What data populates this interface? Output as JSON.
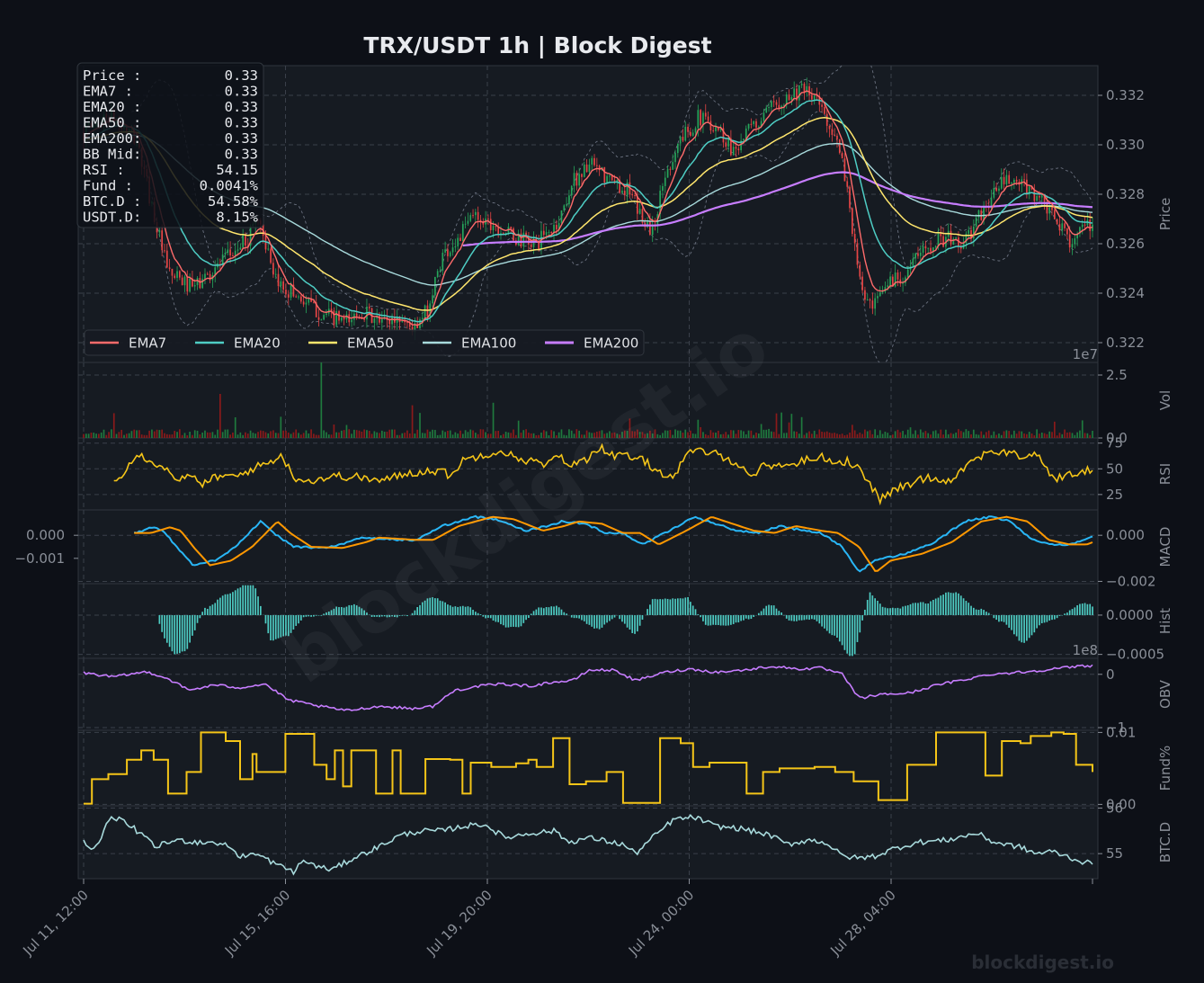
{
  "chart_data": {
    "type": "line",
    "title": "TRX/USDT  1h  |  Block Digest",
    "x_tick_labels": [
      "Jul 11, 12:00",
      "Jul 15, 16:00",
      "Jul 19, 20:00",
      "Jul 24, 00:00",
      "Jul 28, 04:00"
    ],
    "info_box": [
      {
        "label": "Price :",
        "value": "0.33"
      },
      {
        "label": "EMA7  :",
        "value": "0.33"
      },
      {
        "label": "EMA20 :",
        "value": "0.33"
      },
      {
        "label": "EMA50 :",
        "value": "0.33"
      },
      {
        "label": "EMA200:",
        "value": "0.33"
      },
      {
        "label": "BB Mid:",
        "value": "0.33"
      },
      {
        "label": "RSI   :",
        "value": "54.15"
      },
      {
        "label": "Fund  :",
        "value": "0.0041%"
      },
      {
        "label": "BTC.D :",
        "value": "54.58%"
      },
      {
        "label": "USDT.D:",
        "value": "8.15%"
      }
    ],
    "legend": [
      {
        "name": "EMA7",
        "color": "#ff6b6b"
      },
      {
        "name": "EMA20",
        "color": "#4ecdc4"
      },
      {
        "name": "EMA50",
        "color": "#ffe66d"
      },
      {
        "name": "EMA100",
        "color": "#a8dadc"
      },
      {
        "name": "EMA200",
        "color": "#c77dff"
      }
    ],
    "panels": [
      {
        "key": "price",
        "ylabel": "Price",
        "ylim": [
          0.3212,
          0.3332
        ],
        "ticks": [
          "0.322",
          "0.324",
          "0.326",
          "0.328",
          "0.330",
          "0.332"
        ],
        "tick_values": [
          0.322,
          0.324,
          0.326,
          0.328,
          0.33,
          0.332
        ],
        "side": "right",
        "offset_label": ""
      },
      {
        "key": "vol",
        "ylabel": "Vol",
        "ylim": [
          0,
          3.0
        ],
        "ticks": [
          "0.0",
          "2.5"
        ],
        "tick_values": [
          0,
          2.5
        ],
        "side": "right",
        "offset_label": "1e7"
      },
      {
        "key": "rsi",
        "ylabel": "RSI",
        "ylim": [
          10,
          80
        ],
        "ticks": [
          "25",
          "50",
          "75"
        ],
        "tick_values": [
          25,
          50,
          75
        ],
        "side": "right",
        "offset_label": ""
      },
      {
        "key": "macd",
        "ylabel": "MACD",
        "ylim": [
          -0.0021,
          0.0011
        ],
        "ticks": [
          "0.000",
          "−0.002"
        ],
        "tick_values": [
          0,
          -0.002
        ],
        "left_ticks": [
          "0.000",
          "−0.001"
        ],
        "left_tick_values": [
          0,
          -0.001
        ],
        "side": "right",
        "offset_label": ""
      },
      {
        "key": "hist",
        "ylabel": "Hist",
        "ylim": [
          -0.00055,
          0.0004
        ],
        "ticks": [
          "0.0000",
          "−0.0005"
        ],
        "tick_values": [
          0,
          -0.0005
        ],
        "side": "right",
        "offset_label": ""
      },
      {
        "key": "obv",
        "ylabel": "OBV",
        "ylim": [
          -1.05,
          0.3
        ],
        "ticks": [
          "0",
          "−1"
        ],
        "tick_values": [
          0,
          -1
        ],
        "side": "right",
        "offset_label": "1e8"
      },
      {
        "key": "fund",
        "ylabel": "Fund%",
        "ylim": [
          -0.0002,
          0.0103
        ],
        "ticks": [
          "0.00",
          "0.01"
        ],
        "tick_values": [
          0,
          0.01
        ],
        "side": "right",
        "offset_label": ""
      },
      {
        "key": "btcd",
        "ylabel": "BTC.D",
        "ylim": [
          54.45,
          56.05
        ],
        "ticks": [
          "55",
          "56"
        ],
        "tick_values": [
          55,
          56
        ],
        "side": "right",
        "offset_label": ""
      }
    ],
    "series_colors": {
      "up": "#26a65b",
      "down": "#e84545",
      "bb": "#6b7280",
      "rsi": "#f5c518",
      "macd": "#29b6f6",
      "signal": "#ff9800",
      "hist": "#4ecdc4",
      "obv": "#c77dff",
      "fund": "#f5c518",
      "btcd": "#a8dadc",
      "vol_up": "#1f7a3e",
      "vol_down": "#8b1a1a"
    },
    "bars": 400,
    "price_keyframes": [
      [
        0,
        0.3305
      ],
      [
        12,
        0.3312
      ],
      [
        25,
        0.3302
      ],
      [
        40,
        0.3248
      ],
      [
        52,
        0.3242
      ],
      [
        65,
        0.3252
      ],
      [
        78,
        0.3262
      ],
      [
        82,
        0.3272
      ],
      [
        86,
        0.3262
      ],
      [
        90,
        0.3245
      ],
      [
        100,
        0.324
      ],
      [
        112,
        0.3232
      ],
      [
        125,
        0.3228
      ],
      [
        132,
        0.3233
      ],
      [
        140,
        0.3228
      ],
      [
        150,
        0.323
      ],
      [
        158,
        0.3225
      ],
      [
        164,
        0.3235
      ],
      [
        170,
        0.3255
      ],
      [
        178,
        0.3262
      ],
      [
        185,
        0.3272
      ],
      [
        195,
        0.3268
      ],
      [
        205,
        0.3262
      ],
      [
        215,
        0.326
      ],
      [
        225,
        0.3268
      ],
      [
        232,
        0.3285
      ],
      [
        240,
        0.3292
      ],
      [
        250,
        0.3285
      ],
      [
        258,
        0.3282
      ],
      [
        264,
        0.3272
      ],
      [
        270,
        0.3265
      ],
      [
        276,
        0.3288
      ],
      [
        283,
        0.3302
      ],
      [
        292,
        0.3311
      ],
      [
        300,
        0.3308
      ],
      [
        308,
        0.3298
      ],
      [
        316,
        0.3306
      ],
      [
        322,
        0.331
      ],
      [
        330,
        0.3318
      ],
      [
        340,
        0.3322
      ],
      [
        348,
        0.3318
      ],
      [
        356,
        0.3305
      ],
      [
        362,
        0.3285
      ],
      [
        368,
        0.3245
      ],
      [
        374,
        0.3232
      ],
      [
        382,
        0.3245
      ],
      [
        390,
        0.3248
      ],
      [
        396,
        0.3255
      ],
      [
        404,
        0.3262
      ],
      [
        410,
        0.3262
      ],
      [
        418,
        0.326
      ],
      [
        428,
        0.3275
      ],
      [
        436,
        0.3285
      ],
      [
        444,
        0.3284
      ],
      [
        452,
        0.328
      ],
      [
        460,
        0.327
      ],
      [
        468,
        0.3262
      ],
      [
        474,
        0.3265
      ],
      [
        480,
        0.3268
      ]
    ],
    "rsi_keyframes": [
      [
        0,
        20
      ],
      [
        3,
        38
      ],
      [
        8,
        45
      ],
      [
        15,
        65
      ],
      [
        25,
        55
      ],
      [
        33,
        43
      ],
      [
        37,
        40
      ],
      [
        41,
        43
      ],
      [
        45,
        35
      ],
      [
        55,
        43
      ],
      [
        62,
        42
      ],
      [
        70,
        50
      ],
      [
        80,
        58
      ],
      [
        83,
        65
      ],
      [
        90,
        42
      ],
      [
        96,
        38
      ],
      [
        110,
        43
      ],
      [
        120,
        42
      ],
      [
        132,
        38
      ],
      [
        140,
        44
      ],
      [
        152,
        48
      ],
      [
        160,
        48
      ],
      [
        164,
        43
      ],
      [
        170,
        58
      ],
      [
        178,
        63
      ],
      [
        188,
        68
      ],
      [
        196,
        60
      ],
      [
        204,
        57
      ],
      [
        210,
        53
      ],
      [
        215,
        63
      ],
      [
        222,
        53
      ],
      [
        229,
        60
      ],
      [
        235,
        72
      ],
      [
        241,
        63
      ],
      [
        248,
        62
      ],
      [
        256,
        58
      ],
      [
        262,
        48
      ],
      [
        270,
        42
      ],
      [
        276,
        63
      ],
      [
        282,
        68
      ],
      [
        291,
        64
      ],
      [
        300,
        56
      ],
      [
        306,
        43
      ],
      [
        314,
        54
      ],
      [
        323,
        53
      ],
      [
        332,
        58
      ],
      [
        340,
        62
      ],
      [
        348,
        56
      ],
      [
        353,
        58
      ],
      [
        360,
        45
      ],
      [
        368,
        20
      ],
      [
        375,
        30
      ],
      [
        382,
        35
      ],
      [
        390,
        42
      ],
      [
        400,
        38
      ],
      [
        412,
        58
      ],
      [
        420,
        68
      ],
      [
        428,
        65
      ],
      [
        436,
        62
      ],
      [
        442,
        66
      ],
      [
        450,
        40
      ],
      [
        458,
        44
      ],
      [
        466,
        48
      ],
      [
        472,
        52
      ],
      [
        480,
        54
      ]
    ],
    "macd_keyframes": [
      [
        24,
        0.0001
      ],
      [
        33,
        0.00035
      ],
      [
        38,
        0.0002
      ],
      [
        45,
        -0.0006
      ],
      [
        52,
        -0.0013
      ],
      [
        62,
        -0.0011
      ],
      [
        72,
        -0.0005
      ],
      [
        84,
        0.0006
      ],
      [
        90,
        0.0001
      ],
      [
        100,
        -0.0005
      ],
      [
        115,
        -0.00055
      ],
      [
        126,
        -0.0003
      ],
      [
        132,
        -0.0001
      ],
      [
        150,
        -0.0002
      ],
      [
        158,
        -0.0002
      ],
      [
        170,
        0.0004
      ],
      [
        186,
        0.0008
      ],
      [
        196,
        0.0007
      ],
      [
        210,
        0.0002
      ],
      [
        220,
        0.0004
      ],
      [
        227,
        0.0006
      ],
      [
        238,
        0.0005
      ],
      [
        248,
        0.0001
      ],
      [
        256,
        0.0001
      ],
      [
        265,
        -0.0004
      ],
      [
        278,
        0.0002
      ],
      [
        290,
        0.0008
      ],
      [
        300,
        0.0005
      ],
      [
        310,
        0.0002
      ],
      [
        320,
        0.0001
      ],
      [
        330,
        0.0004
      ],
      [
        342,
        0.0002
      ],
      [
        350,
        0.0001
      ],
      [
        360,
        -0.0005
      ],
      [
        368,
        -0.0016
      ],
      [
        375,
        -0.0011
      ],
      [
        390,
        -0.0008
      ],
      [
        404,
        -0.0003
      ],
      [
        418,
        0.0006
      ],
      [
        430,
        0.0008
      ],
      [
        440,
        0.0006
      ],
      [
        450,
        -0.0002
      ],
      [
        460,
        -0.0004
      ],
      [
        468,
        -0.0004
      ],
      [
        480,
        0.0
      ]
    ],
    "obv_keyframes": [
      [
        0,
        0.03
      ],
      [
        14,
        -0.05
      ],
      [
        30,
        0.05
      ],
      [
        40,
        -0.08
      ],
      [
        50,
        -0.3
      ],
      [
        62,
        -0.2
      ],
      [
        74,
        -0.25
      ],
      [
        86,
        -0.18
      ],
      [
        97,
        -0.48
      ],
      [
        112,
        -0.6
      ],
      [
        125,
        -0.68
      ],
      [
        140,
        -0.6
      ],
      [
        156,
        -0.64
      ],
      [
        166,
        -0.6
      ],
      [
        176,
        -0.3
      ],
      [
        188,
        -0.22
      ],
      [
        198,
        -0.18
      ],
      [
        212,
        -0.22
      ],
      [
        222,
        -0.15
      ],
      [
        232,
        -0.12
      ],
      [
        240,
        0.08
      ],
      [
        252,
        0.08
      ],
      [
        262,
        -0.12
      ],
      [
        276,
        0.04
      ],
      [
        288,
        0.1
      ],
      [
        300,
        0.04
      ],
      [
        314,
        0.08
      ],
      [
        326,
        0.15
      ],
      [
        340,
        0.1
      ],
      [
        350,
        0.12
      ],
      [
        360,
        0.0
      ],
      [
        368,
        -0.45
      ],
      [
        378,
        -0.38
      ],
      [
        392,
        -0.35
      ],
      [
        405,
        -0.2
      ],
      [
        418,
        -0.1
      ],
      [
        430,
        0.0
      ],
      [
        448,
        0.05
      ],
      [
        460,
        0.1
      ],
      [
        474,
        0.16
      ],
      [
        480,
        0.16
      ]
    ],
    "fund_keyframes": [
      [
        0,
        0.0001
      ],
      [
        4,
        0.0035
      ],
      [
        9,
        0.0035
      ],
      [
        12,
        0.0042
      ],
      [
        18,
        0.0042
      ],
      [
        21,
        0.0062
      ],
      [
        28,
        0.0075
      ],
      [
        34,
        0.0062
      ],
      [
        41,
        0.0015
      ],
      [
        50,
        0.0045
      ],
      [
        57,
        0.01
      ],
      [
        69,
        0.0088
      ],
      [
        76,
        0.0035
      ],
      [
        82,
        0.007
      ],
      [
        84,
        0.0045
      ],
      [
        93,
        0.0045
      ],
      [
        98,
        0.0098
      ],
      [
        112,
        0.0055
      ],
      [
        118,
        0.0035
      ],
      [
        122,
        0.0075
      ],
      [
        126,
        0.0025
      ],
      [
        130,
        0.0075
      ],
      [
        134,
        0.0075
      ],
      [
        142,
        0.0015
      ],
      [
        146,
        0.0015
      ],
      [
        150,
        0.0075
      ],
      [
        154,
        0.0015
      ],
      [
        160,
        0.0015
      ],
      [
        166,
        0.0063
      ],
      [
        172,
        0.0063
      ],
      [
        178,
        0.0062
      ],
      [
        184,
        0.0015
      ],
      [
        188,
        0.0058
      ],
      [
        198,
        0.0052
      ],
      [
        210,
        0.0057
      ],
      [
        216,
        0.0062
      ],
      [
        220,
        0.0052
      ],
      [
        228,
        0.0092
      ],
      [
        236,
        0.0028
      ],
      [
        244,
        0.0032
      ],
      [
        254,
        0.0045
      ],
      [
        262,
        0.0002
      ],
      [
        270,
        0.0002
      ],
      [
        280,
        0.0092
      ],
      [
        290,
        0.0085
      ],
      [
        296,
        0.0052
      ],
      [
        304,
        0.0058
      ],
      [
        322,
        0.0015
      ],
      [
        330,
        0.0045
      ],
      [
        338,
        0.005
      ],
      [
        355,
        0.0052
      ],
      [
        365,
        0.0045
      ],
      [
        374,
        0.0032
      ],
      [
        382,
        0.0032
      ],
      [
        386,
        0.0006
      ],
      [
        394,
        0.0006
      ],
      [
        400,
        0.0055
      ],
      [
        407,
        0.0055
      ],
      [
        414,
        0.01
      ],
      [
        430,
        0.01
      ],
      [
        438,
        0.004
      ],
      [
        446,
        0.0088
      ],
      [
        455,
        0.0085
      ],
      [
        460,
        0.0095
      ],
      [
        470,
        0.01
      ],
      [
        476,
        0.0098
      ],
      [
        482,
        0.0055
      ],
      [
        490,
        0.0045
      ]
    ],
    "btcd_keyframes": [
      [
        0,
        55.35
      ],
      [
        3,
        55.05
      ],
      [
        8,
        55.3
      ],
      [
        13,
        55.85
      ],
      [
        24,
        55.55
      ],
      [
        34,
        55.15
      ],
      [
        44,
        55.3
      ],
      [
        54,
        55.25
      ],
      [
        62,
        55.25
      ],
      [
        70,
        55.15
      ],
      [
        74,
        54.9
      ],
      [
        78,
        55.0
      ],
      [
        84,
        54.95
      ],
      [
        92,
        54.75
      ],
      [
        100,
        54.6
      ],
      [
        104,
        54.85
      ],
      [
        112,
        54.7
      ],
      [
        118,
        54.65
      ],
      [
        128,
        54.9
      ],
      [
        140,
        55.15
      ],
      [
        150,
        55.4
      ],
      [
        160,
        55.5
      ],
      [
        170,
        55.5
      ],
      [
        180,
        55.6
      ],
      [
        190,
        55.65
      ],
      [
        200,
        55.35
      ],
      [
        212,
        55.45
      ],
      [
        224,
        55.5
      ],
      [
        230,
        55.25
      ],
      [
        240,
        55.35
      ],
      [
        256,
        55.2
      ],
      [
        262,
        55.0
      ],
      [
        270,
        55.35
      ],
      [
        280,
        55.75
      ],
      [
        290,
        55.8
      ],
      [
        300,
        55.6
      ],
      [
        312,
        55.55
      ],
      [
        326,
        55.4
      ],
      [
        334,
        55.2
      ],
      [
        344,
        55.3
      ],
      [
        352,
        55.25
      ],
      [
        360,
        54.95
      ],
      [
        368,
        54.9
      ],
      [
        376,
        54.95
      ],
      [
        384,
        55.1
      ],
      [
        396,
        55.25
      ],
      [
        410,
        55.3
      ],
      [
        424,
        55.45
      ],
      [
        432,
        55.25
      ],
      [
        444,
        55.15
      ],
      [
        452,
        55.0
      ],
      [
        460,
        55.05
      ],
      [
        472,
        54.85
      ],
      [
        480,
        54.75
      ]
    ]
  },
  "watermark": {
    "main": "blockdigest.io",
    "footer": "blockdigest.io"
  }
}
